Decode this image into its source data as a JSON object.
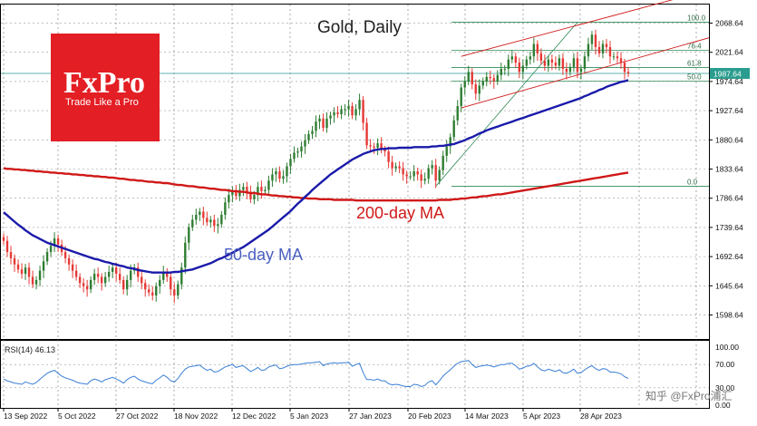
{
  "chart_data": {
    "type": "candlestick",
    "title": "Gold, Daily",
    "instrument": "Gold",
    "timeframe": "Daily",
    "ylim": [
      1560,
      2100
    ],
    "y_ticks": [
      2068.64,
      2021.64,
      1974.64,
      1927.64,
      1880.64,
      1833.64,
      1786.64,
      1739.64,
      1692.64,
      1645.64,
      1598.64
    ],
    "current_price": "1987.64",
    "x_ticks": [
      "13 Sep 2022",
      "5 Oct 2022",
      "27 Oct 2022",
      "18 Nov 2022",
      "12 Dec 2022",
      "5 Jan 2023",
      "27 Jan 2023",
      "20 Feb 2023",
      "14 Mar 2023",
      "5 Apr 2023",
      "28 Apr 2023"
    ],
    "annotations": {
      "ma200": "200-day MA",
      "ma50": "50-day MA"
    },
    "fib_levels": [
      {
        "label": "100.0",
        "price": 2070
      },
      {
        "label": "76.4",
        "price": 2025
      },
      {
        "label": "61.8",
        "price": 1997
      },
      {
        "label": "50.0",
        "price": 1975
      },
      {
        "label": "0.0",
        "price": 1806
      }
    ],
    "closes": [
      1718,
      1700,
      1690,
      1680,
      1672,
      1665,
      1675,
      1660,
      1648,
      1655,
      1670,
      1685,
      1700,
      1710,
      1722,
      1712,
      1700,
      1690,
      1680,
      1670,
      1660,
      1650,
      1645,
      1640,
      1655,
      1665,
      1660,
      1650,
      1660,
      1668,
      1675,
      1665,
      1655,
      1640,
      1655,
      1670,
      1675,
      1660,
      1650,
      1640,
      1635,
      1630,
      1645,
      1655,
      1668,
      1660,
      1640,
      1630,
      1648,
      1675,
      1715,
      1740,
      1752,
      1760,
      1765,
      1755,
      1748,
      1752,
      1742,
      1745,
      1760,
      1780,
      1792,
      1800,
      1790,
      1800,
      1805,
      1797,
      1785,
      1792,
      1805,
      1798,
      1800,
      1815,
      1825,
      1830,
      1818,
      1822,
      1838,
      1850,
      1860,
      1862,
      1870,
      1880,
      1890,
      1895,
      1910,
      1915,
      1900,
      1915,
      1920,
      1925,
      1922,
      1930,
      1930,
      1935,
      1920,
      1930,
      1945,
      1908,
      1872,
      1870,
      1868,
      1875,
      1865,
      1862,
      1845,
      1835,
      1838,
      1835,
      1825,
      1822,
      1822,
      1830,
      1825,
      1815,
      1818,
      1835,
      1840,
      1815,
      1832,
      1855,
      1870,
      1885,
      1912,
      1935,
      1965,
      1975,
      1990,
      1970,
      1955,
      1968,
      1975,
      1982,
      1980,
      1975,
      1985,
      1995,
      1995,
      2010,
      2015,
      2005,
      1990,
      2000,
      2010,
      2015,
      2035,
      2020,
      2008,
      2000,
      2010,
      2005,
      2000,
      2012,
      1995,
      1990,
      1998,
      2012,
      1990,
      1995,
      2015,
      2035,
      2050,
      2030,
      2020,
      2035,
      2030,
      2015,
      2015,
      2012,
      2005,
      1990,
      1987.64
    ],
    "ma50": [
      1764,
      1759,
      1754,
      1749,
      1744,
      1740,
      1735,
      1731,
      1727,
      1724,
      1721,
      1718,
      1715,
      1713,
      1711,
      1709,
      1707,
      1705,
      1703,
      1701,
      1699,
      1697,
      1695,
      1693,
      1691,
      1689,
      1688,
      1686,
      1684,
      1683,
      1681,
      1680,
      1678,
      1677,
      1675,
      1674,
      1673,
      1671,
      1670,
      1669,
      1668,
      1667,
      1667,
      1667,
      1667,
      1667,
      1667,
      1668,
      1668,
      1669,
      1670,
      1671,
      1672,
      1674,
      1676,
      1678,
      1680,
      1682,
      1685,
      1688,
      1690,
      1693,
      1696,
      1699,
      1702,
      1705,
      1708,
      1712,
      1716,
      1720,
      1724,
      1728,
      1732,
      1736,
      1741,
      1746,
      1751,
      1756,
      1761,
      1766,
      1772,
      1778,
      1783,
      1789,
      1794,
      1800,
      1805,
      1810,
      1815,
      1820,
      1825,
      1829,
      1833,
      1837,
      1841,
      1845,
      1849,
      1852,
      1855,
      1858,
      1860,
      1862,
      1864,
      1865,
      1866,
      1866,
      1867,
      1867,
      1867,
      1868,
      1868,
      1868,
      1868,
      1869,
      1869,
      1869,
      1869,
      1869,
      1870,
      1870,
      1871,
      1871,
      1872,
      1873,
      1874,
      1876,
      1878,
      1880,
      1883,
      1885,
      1888,
      1891,
      1893,
      1896,
      1898,
      1900,
      1902,
      1904,
      1906,
      1908,
      1910,
      1912,
      1914,
      1916,
      1918,
      1920,
      1922,
      1924,
      1926,
      1928,
      1930,
      1932,
      1934,
      1936,
      1938,
      1940,
      1942,
      1944,
      1946,
      1948,
      1951,
      1953,
      1956,
      1958,
      1961,
      1963,
      1966,
      1968,
      1970,
      1972,
      1974,
      1975,
      1977
    ],
    "ma200": [
      1835,
      1834,
      1834,
      1833,
      1833,
      1832,
      1832,
      1831,
      1831,
      1830,
      1830,
      1829,
      1829,
      1828,
      1828,
      1827,
      1827,
      1826,
      1826,
      1825,
      1825,
      1824,
      1824,
      1823,
      1823,
      1822,
      1822,
      1821,
      1821,
      1820,
      1820,
      1819,
      1818,
      1818,
      1817,
      1816,
      1816,
      1815,
      1815,
      1814,
      1813,
      1813,
      1812,
      1812,
      1811,
      1811,
      1810,
      1809,
      1808,
      1808,
      1807,
      1806,
      1806,
      1805,
      1804,
      1804,
      1803,
      1802,
      1802,
      1801,
      1800,
      1800,
      1799,
      1798,
      1798,
      1797,
      1797,
      1796,
      1795,
      1795,
      1794,
      1793,
      1793,
      1792,
      1791,
      1791,
      1790,
      1790,
      1789,
      1789,
      1788,
      1788,
      1787,
      1787,
      1786,
      1786,
      1786,
      1785,
      1785,
      1785,
      1785,
      1784,
      1784,
      1784,
      1784,
      1784,
      1784,
      1783,
      1783,
      1783,
      1783,
      1783,
      1783,
      1783,
      1783,
      1783,
      1783,
      1783,
      1783,
      1783,
      1783,
      1783,
      1783,
      1783,
      1783,
      1783,
      1783,
      1783,
      1783,
      1783,
      1784,
      1784,
      1784,
      1784,
      1785,
      1785,
      1786,
      1786,
      1787,
      1788,
      1788,
      1789,
      1790,
      1790,
      1791,
      1792,
      1793,
      1793,
      1794,
      1795,
      1796,
      1797,
      1798,
      1799,
      1800,
      1801,
      1802,
      1803,
      1804,
      1805,
      1806,
      1807,
      1808,
      1809,
      1810,
      1811,
      1812,
      1813,
      1814,
      1815,
      1816,
      1817,
      1818,
      1819,
      1820,
      1821,
      1822,
      1823,
      1824,
      1825,
      1826,
      1827,
      1828
    ],
    "rsi": {
      "label": "RSI(14) 46.13",
      "ylim": [
        0,
        100
      ],
      "ticks": [
        100,
        70,
        30,
        0
      ],
      "tick_labels": [
        "100.00",
        "70.00",
        "30.00",
        "0.00"
      ],
      "values": [
        45,
        42,
        40,
        38,
        37,
        36,
        40,
        38,
        36,
        39,
        45,
        50,
        55,
        58,
        60,
        55,
        50,
        47,
        45,
        43,
        40,
        38,
        37,
        36,
        42,
        45,
        43,
        40,
        44,
        46,
        48,
        45,
        42,
        38,
        44,
        48,
        50,
        45,
        42,
        40,
        38,
        37,
        43,
        47,
        52,
        48,
        42,
        40,
        46,
        55,
        62,
        66,
        67,
        68,
        69,
        64,
        60,
        62,
        57,
        58,
        62,
        66,
        68,
        70,
        65,
        67,
        68,
        63,
        58,
        61,
        65,
        60,
        61,
        66,
        68,
        69,
        63,
        64,
        67,
        69,
        70,
        70,
        71,
        72,
        73,
        73,
        74,
        75,
        68,
        71,
        72,
        73,
        72,
        73,
        73,
        74,
        67,
        70,
        72,
        56,
        44,
        44,
        43,
        45,
        42,
        42,
        37,
        35,
        36,
        35,
        33,
        32,
        32,
        36,
        35,
        32,
        34,
        40,
        42,
        35,
        42,
        50,
        56,
        61,
        67,
        72,
        75,
        76,
        77,
        70,
        65,
        67,
        68,
        69,
        68,
        66,
        68,
        70,
        70,
        72,
        72,
        68,
        62,
        64,
        67,
        68,
        72,
        66,
        61,
        59,
        62,
        60,
        58,
        61,
        56,
        55,
        58,
        62,
        55,
        56,
        61,
        65,
        68,
        63,
        60,
        63,
        62,
        57,
        57,
        56,
        54,
        49,
        46.13
      ]
    }
  },
  "logo": {
    "brand": "FxPro",
    "tagline": "Trade Like a Pro"
  },
  "watermark": "知乎 @FxPro浦汇",
  "colors": {
    "ma50": "#1a1aaa",
    "ma200": "#d01818",
    "candle_up": "#2e7d32",
    "candle_down": "#e53935",
    "fib": "#2e8b57",
    "price_line": "#2a9d8f",
    "logo_bg": "#e31e24",
    "rsi_line": "#3a7fd5",
    "ma200_label": "#d01818",
    "ma50_label": "#4a5fc1"
  }
}
